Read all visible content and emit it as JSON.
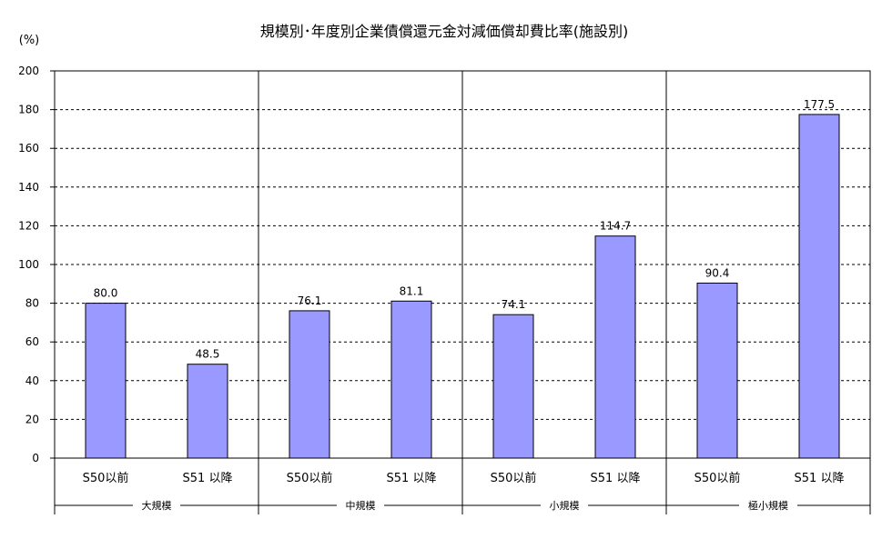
{
  "chart_data": {
    "type": "bar",
    "title": "規模別･年度別企業債償還元金対減価償却費比率(施設別)",
    "ylabel": "(%)",
    "xlabel": "",
    "ylim": [
      0,
      200
    ],
    "yticks": [
      0,
      20,
      40,
      60,
      80,
      100,
      120,
      140,
      160,
      180,
      200
    ],
    "grid": true,
    "grid_style": "dashed",
    "bar_color": "#9999ff",
    "groups": [
      {
        "label": "大規模",
        "categories": [
          "S50以前",
          "S51 以降"
        ],
        "values": [
          80.0,
          48.5
        ]
      },
      {
        "label": "中規模",
        "categories": [
          "S50以前",
          "S51 以降"
        ],
        "values": [
          76.1,
          81.1
        ]
      },
      {
        "label": "小規模",
        "categories": [
          "S50以前",
          "S51 以降"
        ],
        "values": [
          74.1,
          114.7
        ]
      },
      {
        "label": "極小規模",
        "categories": [
          "S50以前",
          "S51 以降"
        ],
        "values": [
          90.4,
          177.5
        ]
      }
    ],
    "value_labels": [
      "80.0",
      "48.5",
      "76.1",
      "81.1",
      "74.1",
      "114.7",
      "90.4",
      "177.5"
    ]
  }
}
